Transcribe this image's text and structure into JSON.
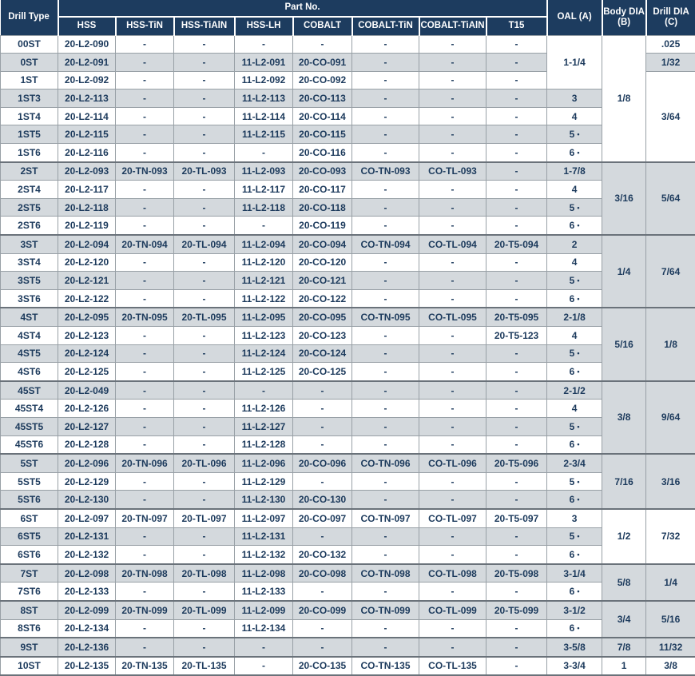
{
  "colors": {
    "header_bg": "#1d3c5f",
    "header_text": "#ffffff",
    "text": "#1c3a5c",
    "row_shade": "#d4d9dd",
    "row_white": "#ffffff",
    "border": "#98a0a6",
    "group_border": "#6a727a"
  },
  "legend_dot": "•",
  "header": {
    "drill_type": "Drill Type",
    "part_no": "Part No.",
    "part_columns": [
      "HSS",
      "HSS-TiN",
      "HSS-TiAlN",
      "HSS-LH",
      "COBALT",
      "COBALT-TiN",
      "COBALT-TiAlN",
      "T15"
    ],
    "oal": "OAL (A)",
    "body_dia_line1": "Body DIA",
    "body_dia_line2": "(B)",
    "drill_dia_line1": "Drill DIA",
    "drill_dia_line2": "(C)"
  },
  "groups": [
    {
      "rows": [
        {
          "type": "00ST",
          "parts": [
            "20-L2-090",
            "-",
            "-",
            "-",
            "-",
            "-",
            "-",
            "-"
          ]
        },
        {
          "type": "0ST",
          "parts": [
            "20-L2-091",
            "-",
            "-",
            "11-L2-091",
            "20-CO-091",
            "-",
            "-",
            "-"
          ]
        },
        {
          "type": "1ST",
          "parts": [
            "20-L2-092",
            "-",
            "-",
            "11-L2-092",
            "20-CO-092",
            "-",
            "-",
            "-"
          ]
        },
        {
          "type": "1ST3",
          "parts": [
            "20-L2-113",
            "-",
            "-",
            "11-L2-113",
            "20-CO-113",
            "-",
            "-",
            "-"
          ]
        },
        {
          "type": "1ST4",
          "parts": [
            "20-L2-114",
            "-",
            "-",
            "11-L2-114",
            "20-CO-114",
            "-",
            "-",
            "-"
          ]
        },
        {
          "type": "1ST5",
          "parts": [
            "20-L2-115",
            "-",
            "-",
            "11-L2-115",
            "20-CO-115",
            "-",
            "-",
            "-"
          ]
        },
        {
          "type": "1ST6",
          "parts": [
            "20-L2-116",
            "-",
            "-",
            "-",
            "20-CO-116",
            "-",
            "-",
            "-"
          ]
        }
      ],
      "oal": [
        {
          "text": "1-1/4",
          "span": 3,
          "dot": false
        },
        {
          "text": "3",
          "span": 1,
          "dot": false
        },
        {
          "text": "4",
          "span": 1,
          "dot": false
        },
        {
          "text": "5",
          "span": 1,
          "dot": true
        },
        {
          "text": "6",
          "span": 1,
          "dot": true
        }
      ],
      "body": "1/8",
      "drill": [
        {
          "text": ".025",
          "span": 1
        },
        {
          "text": "1/32",
          "span": 1
        },
        {
          "text": "3/64",
          "span": 5
        }
      ]
    },
    {
      "rows": [
        {
          "type": "2ST",
          "parts": [
            "20-L2-093",
            "20-TN-093",
            "20-TL-093",
            "11-L2-093",
            "20-CO-093",
            "CO-TN-093",
            "CO-TL-093",
            "-"
          ]
        },
        {
          "type": "2ST4",
          "parts": [
            "20-L2-117",
            "-",
            "-",
            "11-L2-117",
            "20-CO-117",
            "-",
            "-",
            "-"
          ]
        },
        {
          "type": "2ST5",
          "parts": [
            "20-L2-118",
            "-",
            "-",
            "11-L2-118",
            "20-CO-118",
            "-",
            "-",
            "-"
          ]
        },
        {
          "type": "2ST6",
          "parts": [
            "20-L2-119",
            "-",
            "-",
            "-",
            "20-CO-119",
            "-",
            "-",
            "-"
          ]
        }
      ],
      "oal": [
        {
          "text": "1-7/8",
          "span": 1,
          "dot": false
        },
        {
          "text": "4",
          "span": 1,
          "dot": false
        },
        {
          "text": "5",
          "span": 1,
          "dot": true
        },
        {
          "text": "6",
          "span": 1,
          "dot": true
        }
      ],
      "body": "3/16",
      "drill": [
        {
          "text": "5/64",
          "span": 4
        }
      ]
    },
    {
      "rows": [
        {
          "type": "3ST",
          "parts": [
            "20-L2-094",
            "20-TN-094",
            "20-TL-094",
            "11-L2-094",
            "20-CO-094",
            "CO-TN-094",
            "CO-TL-094",
            "20-T5-094"
          ]
        },
        {
          "type": "3ST4",
          "parts": [
            "20-L2-120",
            "-",
            "-",
            "11-L2-120",
            "20-CO-120",
            "-",
            "-",
            "-"
          ]
        },
        {
          "type": "3ST5",
          "parts": [
            "20-L2-121",
            "-",
            "-",
            "11-L2-121",
            "20-CO-121",
            "-",
            "-",
            "-"
          ]
        },
        {
          "type": "3ST6",
          "parts": [
            "20-L2-122",
            "-",
            "-",
            "11-L2-122",
            "20-CO-122",
            "-",
            "-",
            "-"
          ]
        }
      ],
      "oal": [
        {
          "text": "2",
          "span": 1,
          "dot": false
        },
        {
          "text": "4",
          "span": 1,
          "dot": false
        },
        {
          "text": "5",
          "span": 1,
          "dot": true
        },
        {
          "text": "6",
          "span": 1,
          "dot": true
        }
      ],
      "body": "1/4",
      "drill": [
        {
          "text": "7/64",
          "span": 4
        }
      ]
    },
    {
      "rows": [
        {
          "type": "4ST",
          "parts": [
            "20-L2-095",
            "20-TN-095",
            "20-TL-095",
            "11-L2-095",
            "20-CO-095",
            "CO-TN-095",
            "CO-TL-095",
            "20-T5-095"
          ]
        },
        {
          "type": "4ST4",
          "parts": [
            "20-L2-123",
            "-",
            "-",
            "11-L2-123",
            "20-CO-123",
            "-",
            "-",
            "20-T5-123"
          ]
        },
        {
          "type": "4ST5",
          "parts": [
            "20-L2-124",
            "-",
            "-",
            "11-L2-124",
            "20-CO-124",
            "-",
            "-",
            "-"
          ]
        },
        {
          "type": "4ST6",
          "parts": [
            "20-L2-125",
            "-",
            "-",
            "11-L2-125",
            "20-CO-125",
            "-",
            "-",
            "-"
          ]
        }
      ],
      "oal": [
        {
          "text": "2-1/8",
          "span": 1,
          "dot": false
        },
        {
          "text": "4",
          "span": 1,
          "dot": false
        },
        {
          "text": "5",
          "span": 1,
          "dot": true
        },
        {
          "text": "6",
          "span": 1,
          "dot": true
        }
      ],
      "body": "5/16",
      "drill": [
        {
          "text": "1/8",
          "span": 4
        }
      ]
    },
    {
      "rows": [
        {
          "type": "45ST",
          "parts": [
            "20-L2-049",
            "-",
            "-",
            "-",
            "-",
            "-",
            "-",
            "-"
          ]
        },
        {
          "type": "45ST4",
          "parts": [
            "20-L2-126",
            "-",
            "-",
            "11-L2-126",
            "-",
            "-",
            "-",
            "-"
          ]
        },
        {
          "type": "45ST5",
          "parts": [
            "20-L2-127",
            "-",
            "-",
            "11-L2-127",
            "-",
            "-",
            "-",
            "-"
          ]
        },
        {
          "type": "45ST6",
          "parts": [
            "20-L2-128",
            "-",
            "-",
            "11-L2-128",
            "-",
            "-",
            "-",
            "-"
          ]
        }
      ],
      "oal": [
        {
          "text": "2-1/2",
          "span": 1,
          "dot": false
        },
        {
          "text": "4",
          "span": 1,
          "dot": false
        },
        {
          "text": "5",
          "span": 1,
          "dot": true
        },
        {
          "text": "6",
          "span": 1,
          "dot": true
        }
      ],
      "body": "3/8",
      "drill": [
        {
          "text": "9/64",
          "span": 4
        }
      ]
    },
    {
      "rows": [
        {
          "type": "5ST",
          "parts": [
            "20-L2-096",
            "20-TN-096",
            "20-TL-096",
            "11-L2-096",
            "20-CO-096",
            "CO-TN-096",
            "CO-TL-096",
            "20-T5-096"
          ]
        },
        {
          "type": "5ST5",
          "parts": [
            "20-L2-129",
            "-",
            "-",
            "11-L2-129",
            "-",
            "-",
            "-",
            "-"
          ]
        },
        {
          "type": "5ST6",
          "parts": [
            "20-L2-130",
            "-",
            "-",
            "11-L2-130",
            "20-CO-130",
            "-",
            "-",
            "-"
          ]
        }
      ],
      "oal": [
        {
          "text": "2-3/4",
          "span": 1,
          "dot": false
        },
        {
          "text": "5",
          "span": 1,
          "dot": true
        },
        {
          "text": "6",
          "span": 1,
          "dot": true
        }
      ],
      "body": "7/16",
      "drill": [
        {
          "text": "3/16",
          "span": 3
        }
      ]
    },
    {
      "rows": [
        {
          "type": "6ST",
          "parts": [
            "20-L2-097",
            "20-TN-097",
            "20-TL-097",
            "11-L2-097",
            "20-CO-097",
            "CO-TN-097",
            "CO-TL-097",
            "20-T5-097"
          ]
        },
        {
          "type": "6ST5",
          "parts": [
            "20-L2-131",
            "-",
            "-",
            "11-L2-131",
            "-",
            "-",
            "-",
            "-"
          ]
        },
        {
          "type": "6ST6",
          "parts": [
            "20-L2-132",
            "-",
            "-",
            "11-L2-132",
            "20-CO-132",
            "-",
            "-",
            "-"
          ]
        }
      ],
      "oal": [
        {
          "text": "3",
          "span": 1,
          "dot": false
        },
        {
          "text": "5",
          "span": 1,
          "dot": true
        },
        {
          "text": "6",
          "span": 1,
          "dot": true
        }
      ],
      "body": "1/2",
      "drill": [
        {
          "text": "7/32",
          "span": 3
        }
      ]
    },
    {
      "rows": [
        {
          "type": "7ST",
          "parts": [
            "20-L2-098",
            "20-TN-098",
            "20-TL-098",
            "11-L2-098",
            "20-CO-098",
            "CO-TN-098",
            "CO-TL-098",
            "20-T5-098"
          ]
        },
        {
          "type": "7ST6",
          "parts": [
            "20-L2-133",
            "-",
            "-",
            "11-L2-133",
            "-",
            "-",
            "-",
            "-"
          ]
        }
      ],
      "oal": [
        {
          "text": "3-1/4",
          "span": 1,
          "dot": false
        },
        {
          "text": "6",
          "span": 1,
          "dot": true
        }
      ],
      "body": "5/8",
      "drill": [
        {
          "text": "1/4",
          "span": 2
        }
      ]
    },
    {
      "rows": [
        {
          "type": "8ST",
          "parts": [
            "20-L2-099",
            "20-TN-099",
            "20-TL-099",
            "11-L2-099",
            "20-CO-099",
            "CO-TN-099",
            "CO-TL-099",
            "20-T5-099"
          ]
        },
        {
          "type": "8ST6",
          "parts": [
            "20-L2-134",
            "-",
            "-",
            "11-L2-134",
            "-",
            "-",
            "-",
            "-"
          ]
        }
      ],
      "oal": [
        {
          "text": "3-1/2",
          "span": 1,
          "dot": false
        },
        {
          "text": "6",
          "span": 1,
          "dot": true
        }
      ],
      "body": "3/4",
      "drill": [
        {
          "text": "5/16",
          "span": 2
        }
      ]
    },
    {
      "rows": [
        {
          "type": "9ST",
          "parts": [
            "20-L2-136",
            "-",
            "-",
            "-",
            "-",
            "-",
            "-",
            "-"
          ]
        }
      ],
      "oal": [
        {
          "text": "3-5/8",
          "span": 1,
          "dot": false
        }
      ],
      "body": "7/8",
      "drill": [
        {
          "text": "11/32",
          "span": 1
        }
      ]
    },
    {
      "rows": [
        {
          "type": "10ST",
          "parts": [
            "20-L2-135",
            "20-TN-135",
            "20-TL-135",
            "-",
            "20-CO-135",
            "CO-TN-135",
            "CO-TL-135",
            "-"
          ]
        }
      ],
      "oal": [
        {
          "text": "3-3/4",
          "span": 1,
          "dot": false
        }
      ],
      "body": "1",
      "drill": [
        {
          "text": "3/8",
          "span": 1
        }
      ]
    }
  ]
}
